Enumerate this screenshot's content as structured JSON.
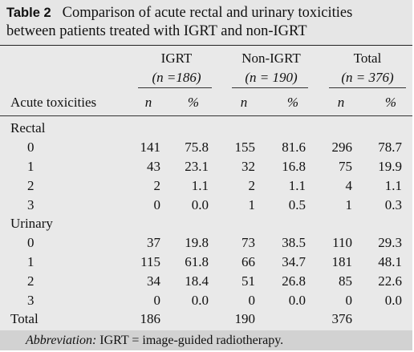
{
  "table": {
    "label": "Table 2",
    "caption_line1": "Comparison of acute rectal and urinary toxicities",
    "caption_line2": "between patients treated with IGRT and non-IGRT",
    "groups": [
      {
        "name": "IGRT",
        "n_label": "(n =186)"
      },
      {
        "name": "Non-IGRT",
        "n_label": "(n = 190)"
      },
      {
        "name": "Total",
        "n_label": "(n = 376)"
      }
    ],
    "row_header": "Acute toxicities",
    "col_n": "n",
    "col_pct": "%",
    "sections": [
      {
        "title": "Rectal",
        "rows": [
          {
            "grade": "0",
            "vals": [
              "141",
              "75.8",
              "155",
              "81.6",
              "296",
              "78.7"
            ]
          },
          {
            "grade": "1",
            "vals": [
              "43",
              "23.1",
              "32",
              "16.8",
              "75",
              "19.9"
            ]
          },
          {
            "grade": "2",
            "vals": [
              "2",
              "1.1",
              "2",
              "1.1",
              "4",
              "1.1"
            ]
          },
          {
            "grade": "3",
            "vals": [
              "0",
              "0.0",
              "1",
              "0.5",
              "1",
              "0.3"
            ]
          }
        ]
      },
      {
        "title": "Urinary",
        "rows": [
          {
            "grade": "0",
            "vals": [
              "37",
              "19.8",
              "73",
              "38.5",
              "110",
              "29.3"
            ]
          },
          {
            "grade": "1",
            "vals": [
              "115",
              "61.8",
              "66",
              "34.7",
              "181",
              "48.1"
            ]
          },
          {
            "grade": "2",
            "vals": [
              "34",
              "18.4",
              "51",
              "26.8",
              "85",
              "22.6"
            ]
          },
          {
            "grade": "3",
            "vals": [
              "0",
              "0.0",
              "0",
              "0.0",
              "0",
              "0.0"
            ]
          }
        ]
      }
    ],
    "total": {
      "label": "Total",
      "vals": [
        "186",
        "190",
        "376"
      ]
    },
    "footnote": {
      "term": "Abbreviation:",
      "text": "IGRT = image-guided radiotherapy."
    }
  }
}
